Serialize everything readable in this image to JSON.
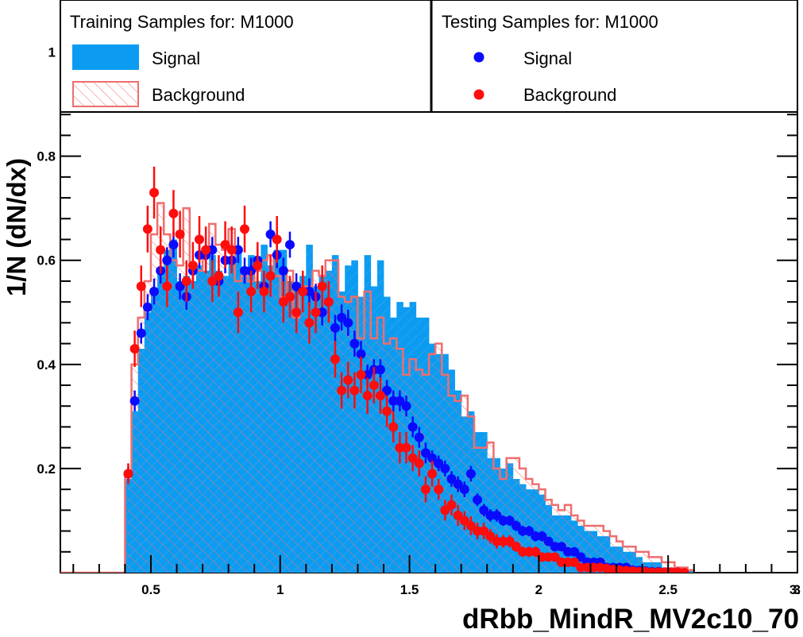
{
  "chart_data": {
    "type": "bar",
    "xlabel": "dRbb_MindR_MV2c10_70",
    "ylabel": "1/N (dN/dx)",
    "xlim": [
      0.15,
      3.0
    ],
    "ylim": [
      0.0,
      1.1
    ],
    "x_ticks": [
      {
        "value": 0.5,
        "label": "0.5"
      },
      {
        "value": 1.0,
        "label": "1"
      },
      {
        "value": 1.5,
        "label": "1.5"
      },
      {
        "value": 2.0,
        "label": "2"
      },
      {
        "value": 2.5,
        "label": "2.5"
      },
      {
        "value": 3.0,
        "label": "3"
      },
      {
        "value": 3.5,
        "label": "3."
      }
    ],
    "y_ticks": [
      {
        "value": 0.2,
        "label": "0.2"
      },
      {
        "value": 0.4,
        "label": "0.4"
      },
      {
        "value": 0.6,
        "label": "0.6"
      },
      {
        "value": 0.8,
        "label": "0.8"
      },
      {
        "value": 1.0,
        "label": "1"
      }
    ],
    "legend": {
      "placement": "top",
      "training_title": "Training Samples for: M1000",
      "testing_title": "Testing Samples for: M1000",
      "training_signal": "Signal",
      "training_background": "Background",
      "testing_signal": "Signal",
      "testing_background": "Background"
    },
    "colors": {
      "signal_fill": "#0b9cf2",
      "signal_hatch": "#7aaee6",
      "background_line": "#ef6e6e",
      "signal_marker": "#0a0aff",
      "background_marker": "#ff0c0c"
    },
    "bins": {
      "start": 0.4,
      "width": 0.025
    },
    "series": [
      {
        "name": "Signal",
        "kind": "training-histogram",
        "values": [
          0.18,
          0.31,
          0.43,
          0.5,
          0.54,
          0.58,
          0.62,
          0.64,
          0.56,
          0.57,
          0.56,
          0.59,
          0.58,
          0.61,
          0.58,
          0.57,
          0.6,
          0.62,
          0.57,
          0.61,
          0.56,
          0.63,
          0.59,
          0.62,
          0.62,
          0.56,
          0.55,
          0.57,
          0.63,
          0.55,
          0.57,
          0.58,
          0.61,
          0.54,
          0.59,
          0.6,
          0.53,
          0.61,
          0.55,
          0.6,
          0.53,
          0.49,
          0.52,
          0.51,
          0.52,
          0.49,
          0.49,
          0.44,
          0.42,
          0.42,
          0.39,
          0.35,
          0.3,
          0.31,
          0.27,
          0.27,
          0.22,
          0.22,
          0.2,
          0.21,
          0.18,
          0.17,
          0.16,
          0.16,
          0.15,
          0.13,
          0.11,
          0.11,
          0.11,
          0.1,
          0.09,
          0.08,
          0.08,
          0.07,
          0.07,
          0.05,
          0.05,
          0.04,
          0.04,
          0.03,
          0.02,
          0.02,
          0.02,
          0.01,
          0.01,
          0.01,
          0.005,
          0.003
        ]
      },
      {
        "name": "Background",
        "kind": "training-histogram",
        "values": [
          0.19,
          0.4,
          0.49,
          0.56,
          0.65,
          0.71,
          0.65,
          0.6,
          0.59,
          0.7,
          0.58,
          0.58,
          0.62,
          0.67,
          0.63,
          0.62,
          0.66,
          0.56,
          0.57,
          0.56,
          0.58,
          0.6,
          0.61,
          0.57,
          0.53,
          0.58,
          0.49,
          0.55,
          0.55,
          0.58,
          0.57,
          0.6,
          0.6,
          0.53,
          0.52,
          0.53,
          0.45,
          0.54,
          0.45,
          0.49,
          0.44,
          0.45,
          0.43,
          0.38,
          0.41,
          0.39,
          0.38,
          0.42,
          0.44,
          0.38,
          0.34,
          0.33,
          0.34,
          0.3,
          0.24,
          0.24,
          0.25,
          0.2,
          0.18,
          0.22,
          0.22,
          0.2,
          0.18,
          0.17,
          0.16,
          0.14,
          0.13,
          0.12,
          0.13,
          0.11,
          0.1,
          0.09,
          0.09,
          0.09,
          0.08,
          0.07,
          0.06,
          0.05,
          0.05,
          0.04,
          0.04,
          0.03,
          0.03,
          0.02,
          0.02,
          0.01,
          0.01,
          0.005
        ]
      },
      {
        "name": "Signal",
        "kind": "testing-points",
        "x": [
          0.4125,
          0.4375,
          0.4625,
          0.4875,
          0.5125,
          0.5375,
          0.5625,
          0.5875,
          0.6125,
          0.6375,
          0.6625,
          0.6875,
          0.7125,
          0.7375,
          0.7625,
          0.7875,
          0.8125,
          0.8375,
          0.8625,
          0.8875,
          0.9125,
          0.9375,
          0.9625,
          0.9875,
          1.0125,
          1.0375,
          1.0625,
          1.0875,
          1.1125,
          1.1375,
          1.1625,
          1.1875,
          1.2125,
          1.2375,
          1.2625,
          1.2875,
          1.3125,
          1.3375,
          1.3625,
          1.3875,
          1.4125,
          1.4375,
          1.4625,
          1.4875,
          1.5125,
          1.5375,
          1.5625,
          1.5875,
          1.6125,
          1.6375,
          1.6625,
          1.6875,
          1.7125,
          1.7375,
          1.7625,
          1.7875,
          1.8125,
          1.8375,
          1.8625,
          1.8875,
          1.9125,
          1.9375,
          1.9625,
          1.9875,
          2.0125,
          2.0375,
          2.0625,
          2.0875,
          2.1125,
          2.1375,
          2.1625,
          2.1875,
          2.2125,
          2.2375,
          2.2625,
          2.2875,
          2.3125,
          2.3375,
          2.3625,
          2.3875,
          2.4125,
          2.4375,
          2.4625,
          2.4875,
          2.5125,
          2.5375
        ],
        "y": [
          0.19,
          0.33,
          0.46,
          0.51,
          0.54,
          0.58,
          0.6,
          0.63,
          0.55,
          0.53,
          0.58,
          0.61,
          0.61,
          0.62,
          0.56,
          0.6,
          0.6,
          0.62,
          0.58,
          0.58,
          0.6,
          0.55,
          0.65,
          0.61,
          0.58,
          0.63,
          0.55,
          0.54,
          0.54,
          0.53,
          0.5,
          0.52,
          0.47,
          0.49,
          0.48,
          0.44,
          0.42,
          0.38,
          0.39,
          0.39,
          0.35,
          0.33,
          0.33,
          0.32,
          0.28,
          0.26,
          0.23,
          0.22,
          0.21,
          0.2,
          0.18,
          0.17,
          0.16,
          0.19,
          0.14,
          0.12,
          0.11,
          0.11,
          0.1,
          0.1,
          0.09,
          0.08,
          0.08,
          0.07,
          0.07,
          0.06,
          0.05,
          0.05,
          0.04,
          0.04,
          0.03,
          0.02,
          0.02,
          0.02,
          0.01,
          0.01,
          0.01,
          0.01,
          0.005,
          0.004,
          0.003,
          0.002,
          0.002,
          0.001,
          0.001,
          0.001
        ],
        "err": [
          0.015,
          0.02,
          0.02,
          0.025,
          0.025,
          0.025,
          0.025,
          0.025,
          0.025,
          0.025,
          0.025,
          0.025,
          0.025,
          0.025,
          0.025,
          0.025,
          0.025,
          0.025,
          0.025,
          0.025,
          0.025,
          0.025,
          0.025,
          0.025,
          0.025,
          0.025,
          0.025,
          0.025,
          0.025,
          0.025,
          0.025,
          0.025,
          0.025,
          0.025,
          0.025,
          0.025,
          0.025,
          0.02,
          0.02,
          0.02,
          0.02,
          0.02,
          0.02,
          0.02,
          0.02,
          0.02,
          0.02,
          0.015,
          0.015,
          0.015,
          0.015,
          0.015,
          0.015,
          0.015,
          0.012,
          0.012,
          0.012,
          0.012,
          0.01,
          0.01,
          0.01,
          0.01,
          0.01,
          0.01,
          0.01,
          0.008,
          0.008,
          0.008,
          0.008,
          0.008,
          0.006,
          0.006,
          0.006,
          0.006,
          0.005,
          0.005,
          0.005,
          0.005,
          0.004,
          0.004,
          0.004,
          0.004,
          0.003,
          0.003,
          0.003,
          0.003
        ]
      },
      {
        "name": "Background",
        "kind": "testing-points",
        "x": [
          0.4125,
          0.4375,
          0.4625,
          0.4875,
          0.5125,
          0.5375,
          0.5625,
          0.5875,
          0.6125,
          0.6375,
          0.6625,
          0.6875,
          0.7125,
          0.7375,
          0.7625,
          0.7875,
          0.8125,
          0.8375,
          0.8625,
          0.8875,
          0.9125,
          0.9375,
          0.9625,
          0.9875,
          1.0125,
          1.0375,
          1.0625,
          1.0875,
          1.1125,
          1.1375,
          1.1625,
          1.1875,
          1.2125,
          1.2375,
          1.2625,
          1.2875,
          1.3125,
          1.3375,
          1.3625,
          1.3875,
          1.4125,
          1.4375,
          1.4625,
          1.4875,
          1.5125,
          1.5375,
          1.5625,
          1.5875,
          1.6125,
          1.6375,
          1.6625,
          1.6875,
          1.7125,
          1.7375,
          1.7625,
          1.7875,
          1.8125,
          1.8375,
          1.8625,
          1.8875,
          1.9125,
          1.9375,
          1.9625,
          1.9875,
          2.0125,
          2.0375,
          2.0625,
          2.0875,
          2.1125,
          2.1375,
          2.1625,
          2.1875,
          2.2125,
          2.2375,
          2.2625,
          2.2875,
          2.3125,
          2.3375,
          2.3625,
          2.3875,
          2.4125,
          2.4375,
          2.4625,
          2.4875,
          2.5125,
          2.5375,
          2.5625
        ],
        "y": [
          0.19,
          0.43,
          0.55,
          0.66,
          0.73,
          0.62,
          0.55,
          0.69,
          0.65,
          0.56,
          0.59,
          0.64,
          0.62,
          0.56,
          0.57,
          0.63,
          0.62,
          0.5,
          0.66,
          0.54,
          0.59,
          0.54,
          0.57,
          0.64,
          0.52,
          0.53,
          0.5,
          0.54,
          0.48,
          0.5,
          0.55,
          0.52,
          0.41,
          0.35,
          0.37,
          0.35,
          0.38,
          0.34,
          0.36,
          0.34,
          0.31,
          0.28,
          0.24,
          0.24,
          0.22,
          0.21,
          0.16,
          0.19,
          0.16,
          0.12,
          0.13,
          0.11,
          0.1,
          0.09,
          0.08,
          0.08,
          0.07,
          0.06,
          0.06,
          0.06,
          0.05,
          0.04,
          0.04,
          0.04,
          0.03,
          0.03,
          0.03,
          0.02,
          0.02,
          0.02,
          0.01,
          0.01,
          0.01,
          0.01,
          0.008,
          0.006,
          0.005,
          0.004,
          0.003,
          0.002,
          0.002,
          0.001,
          0.001,
          0.001,
          0.001,
          0.001,
          0.0
        ],
        "err": [
          0.02,
          0.035,
          0.04,
          0.045,
          0.05,
          0.045,
          0.04,
          0.045,
          0.045,
          0.04,
          0.045,
          0.045,
          0.045,
          0.04,
          0.04,
          0.045,
          0.045,
          0.04,
          0.045,
          0.04,
          0.045,
          0.04,
          0.04,
          0.045,
          0.04,
          0.04,
          0.04,
          0.04,
          0.04,
          0.04,
          0.04,
          0.04,
          0.035,
          0.035,
          0.035,
          0.035,
          0.035,
          0.035,
          0.035,
          0.035,
          0.03,
          0.03,
          0.03,
          0.03,
          0.025,
          0.025,
          0.025,
          0.025,
          0.02,
          0.02,
          0.02,
          0.02,
          0.018,
          0.018,
          0.016,
          0.016,
          0.014,
          0.014,
          0.012,
          0.012,
          0.01,
          0.01,
          0.01,
          0.01,
          0.008,
          0.008,
          0.008,
          0.008,
          0.006,
          0.006,
          0.006,
          0.006,
          0.005,
          0.005,
          0.005,
          0.005,
          0.004,
          0.004,
          0.004,
          0.004,
          0.003,
          0.003,
          0.003,
          0.003,
          0.003,
          0.003,
          0.003
        ]
      }
    ]
  }
}
